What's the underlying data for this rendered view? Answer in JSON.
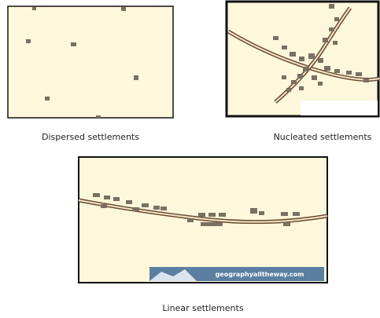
{
  "panels": [
    {
      "caption": "Dispersed settlements"
    },
    {
      "caption": "Nucleated settlements"
    },
    {
      "caption": "Linear settlements",
      "watermark": "geographyalltheway.com"
    }
  ]
}
